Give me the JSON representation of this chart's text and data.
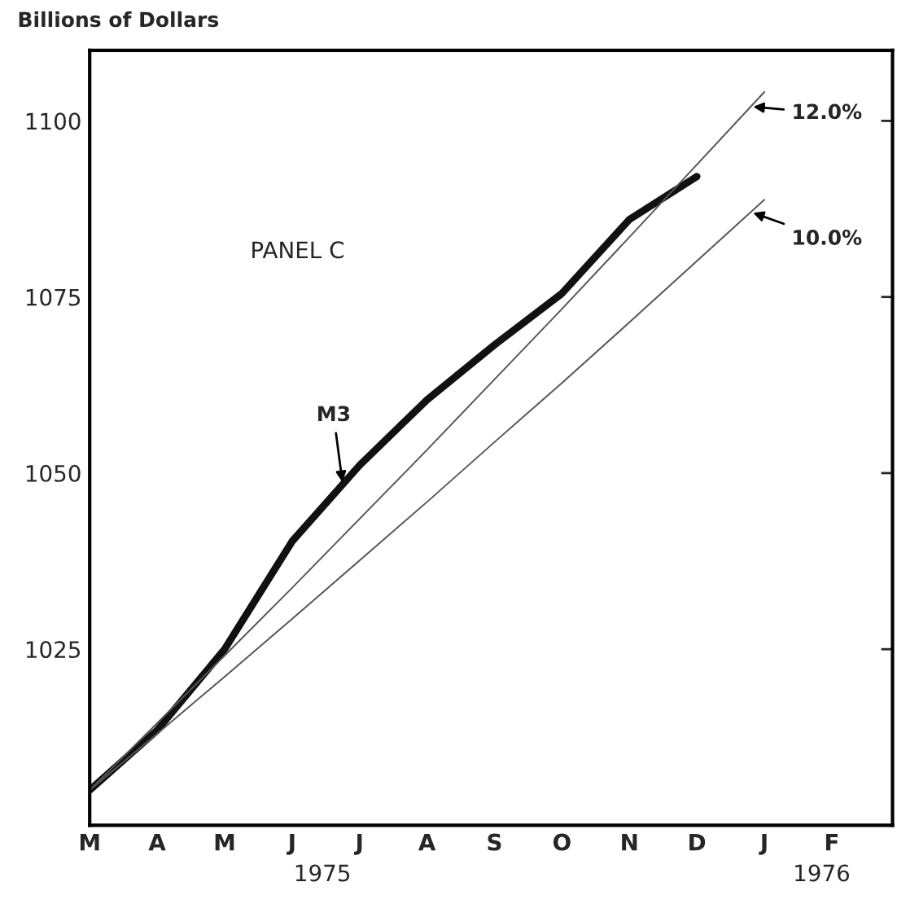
{
  "chart_data": {
    "type": "line",
    "ylabel": "Billions of Dollars",
    "annotations": [
      "PANEL C",
      "1975",
      "1976"
    ],
    "categories": [
      "M",
      "A",
      "M",
      "J",
      "J",
      "A",
      "S",
      "O",
      "N",
      "D",
      "J",
      "F"
    ],
    "ylim": [
      1000,
      1110
    ],
    "yticks": [
      1025,
      1050,
      1075,
      1100
    ],
    "series": [
      {
        "name": "M3",
        "color": "#111111",
        "values": [
          1005,
          1013.5,
          1025,
          1040.3,
          1051.1,
          1060.4,
          1068.2,
          1075.5,
          1086,
          1092.1,
          null,
          null
        ]
      },
      {
        "name": "12.0%",
        "color": "#555555",
        "values": [
          1005,
          1014.5,
          1024.1,
          1033.7,
          1043.5,
          1053.3,
          1063.3,
          1073.3,
          1083.5,
          1093.8,
          1104.1,
          null
        ]
      },
      {
        "name": "10.0%",
        "color": "#555555",
        "values": [
          1005,
          1013.0,
          1021.1,
          1029.3,
          1037.6,
          1045.9,
          1054.4,
          1062.8,
          1071.4,
          1080.1,
          1088.8,
          null
        ]
      }
    ]
  }
}
